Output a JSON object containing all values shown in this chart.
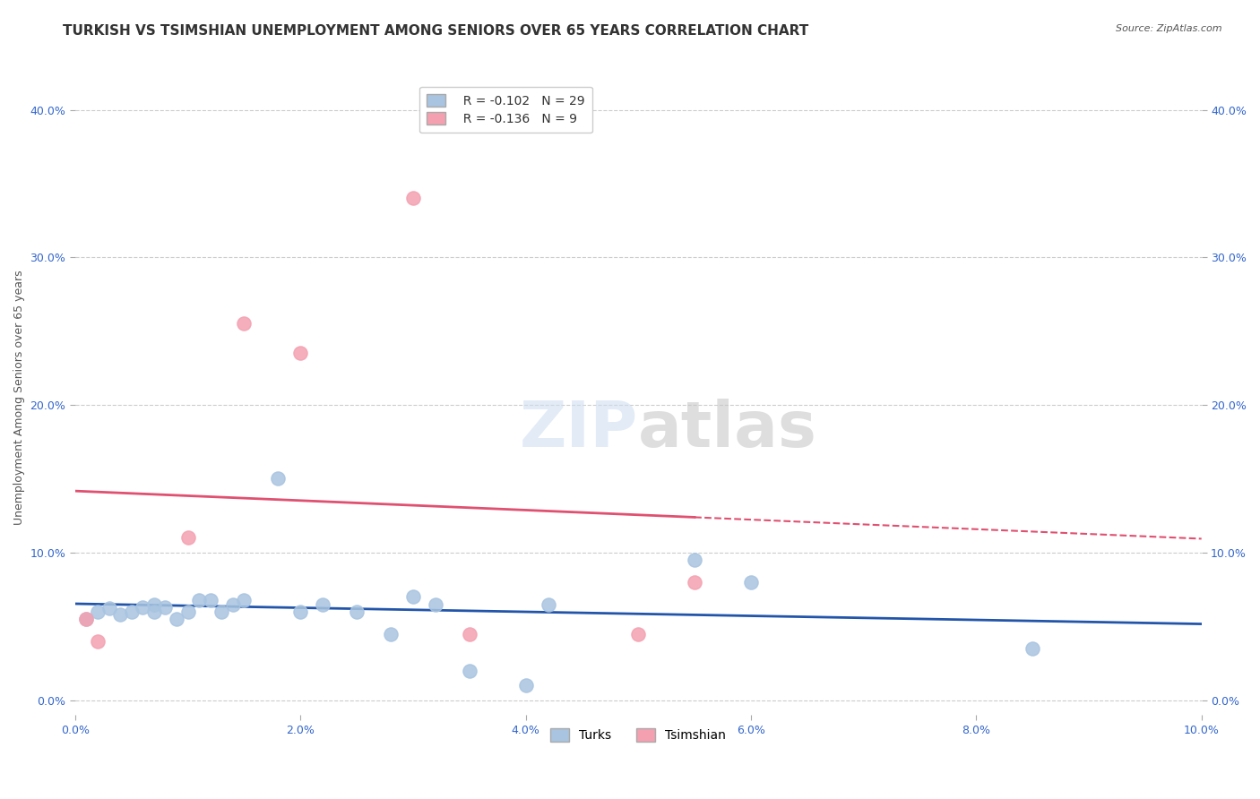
{
  "title": "TURKISH VS TSIMSHIAN UNEMPLOYMENT AMONG SENIORS OVER 65 YEARS CORRELATION CHART",
  "source": "Source: ZipAtlas.com",
  "ylabel_label": "Unemployment Among Seniors over 65 years",
  "xlim": [
    0.0,
    0.1
  ],
  "ylim": [
    -0.01,
    0.42
  ],
  "xticks": [
    0.0,
    0.02,
    0.04,
    0.06,
    0.08,
    0.1
  ],
  "yticks": [
    0.0,
    0.1,
    0.2,
    0.3,
    0.4
  ],
  "ytick_labels": [
    "0.0%",
    "10.0%",
    "20.0%",
    "30.0%",
    "40.0%"
  ],
  "xtick_labels": [
    "0.0%",
    "2.0%",
    "4.0%",
    "6.0%",
    "8.0%",
    "10.0%"
  ],
  "background_color": "#ffffff",
  "grid_color": "#cccccc",
  "turks_color": "#a8c4e0",
  "tsimshian_color": "#f4a0b0",
  "turks_line_color": "#2255aa",
  "tsimshian_line_color": "#e05070",
  "r_turks": -0.102,
  "n_turks": 29,
  "r_tsimshian": -0.136,
  "n_tsimshian": 9,
  "turks_x": [
    0.001,
    0.002,
    0.003,
    0.004,
    0.005,
    0.006,
    0.007,
    0.007,
    0.008,
    0.009,
    0.01,
    0.011,
    0.012,
    0.013,
    0.014,
    0.015,
    0.018,
    0.02,
    0.022,
    0.025,
    0.028,
    0.03,
    0.032,
    0.035,
    0.04,
    0.042,
    0.055,
    0.06,
    0.085
  ],
  "turks_y": [
    0.055,
    0.06,
    0.062,
    0.058,
    0.06,
    0.063,
    0.065,
    0.06,
    0.063,
    0.055,
    0.06,
    0.068,
    0.068,
    0.06,
    0.065,
    0.068,
    0.15,
    0.06,
    0.065,
    0.06,
    0.045,
    0.07,
    0.065,
    0.02,
    0.01,
    0.065,
    0.095,
    0.08,
    0.035
  ],
  "tsimshian_x": [
    0.001,
    0.002,
    0.01,
    0.015,
    0.02,
    0.03,
    0.035,
    0.05,
    0.055
  ],
  "tsimshian_y": [
    0.055,
    0.04,
    0.11,
    0.255,
    0.235,
    0.34,
    0.045,
    0.045,
    0.08
  ],
  "marker_size": 120,
  "title_fontsize": 11,
  "axis_fontsize": 9,
  "tick_fontsize": 9,
  "legend_fontsize": 10
}
